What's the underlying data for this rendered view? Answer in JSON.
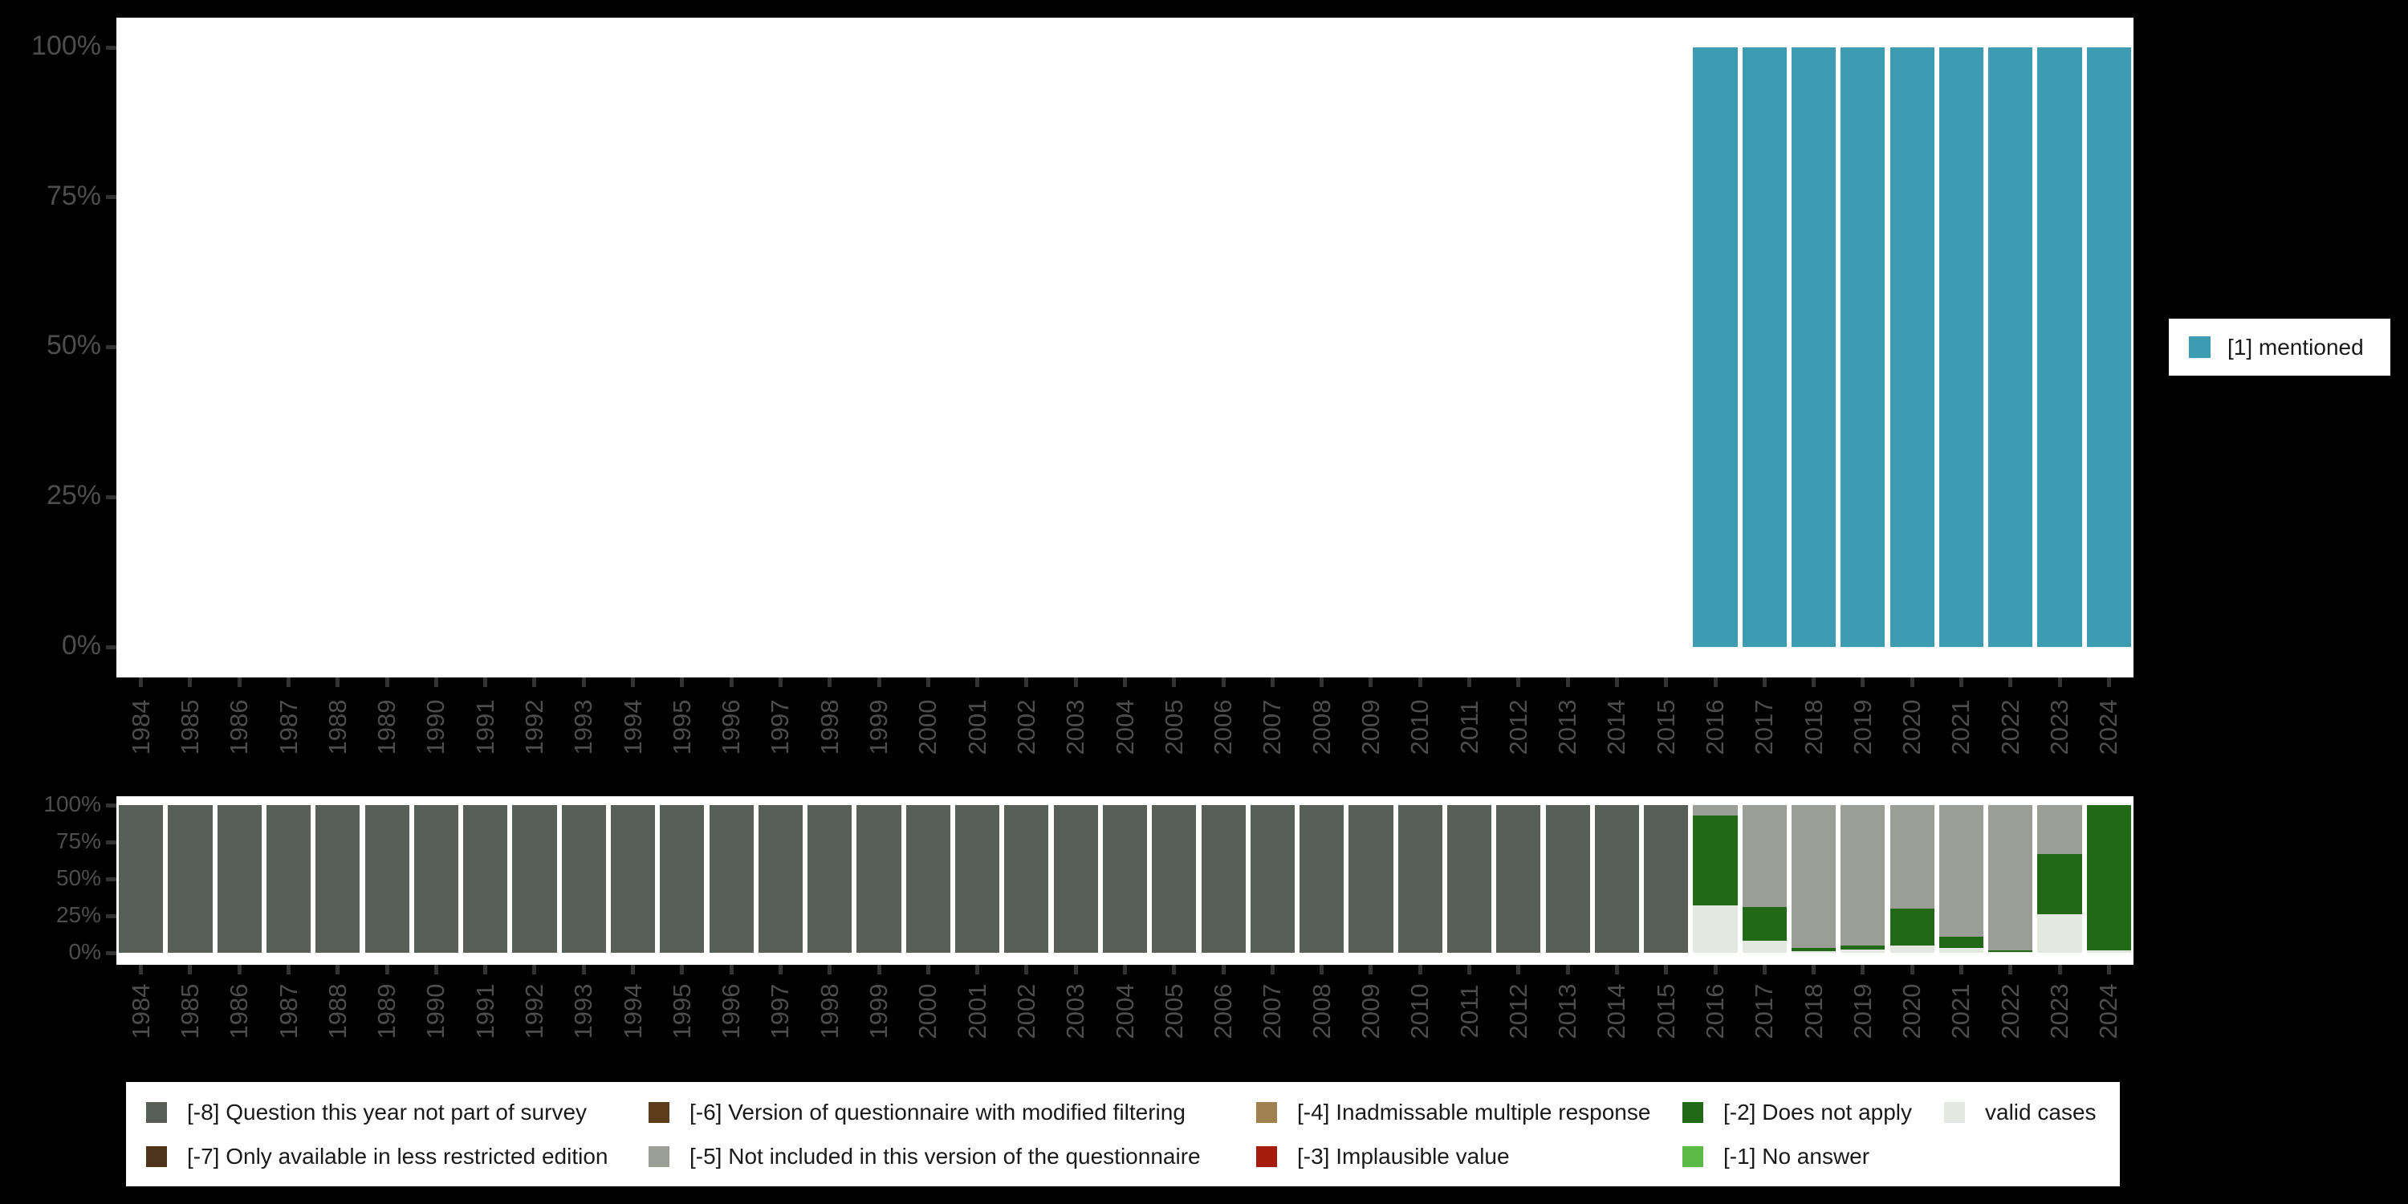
{
  "chart_data": [
    {
      "id": "mentioned-availability",
      "type": "bar",
      "stacked": true,
      "title": "",
      "xlabel": "",
      "ylabel": "",
      "ylim": [
        0,
        100
      ],
      "grid": false,
      "legend_position": "right",
      "y_tick_labels": [
        "100%",
        "75%",
        "50%",
        "25%",
        "0%"
      ],
      "y_tick_values": [
        100,
        75,
        50,
        25,
        0
      ],
      "categories": [
        "1984",
        "1985",
        "1986",
        "1987",
        "1988",
        "1989",
        "1990",
        "1991",
        "1992",
        "1993",
        "1994",
        "1995",
        "1996",
        "1997",
        "1998",
        "1999",
        "2000",
        "2001",
        "2002",
        "2003",
        "2004",
        "2005",
        "2006",
        "2007",
        "2008",
        "2009",
        "2010",
        "2011",
        "2012",
        "2013",
        "2014",
        "2015",
        "2016",
        "2017",
        "2018",
        "2019",
        "2020",
        "2021",
        "2022",
        "2023",
        "2024"
      ],
      "series": [
        {
          "name": "[1] mentioned",
          "color": "#3d9bb2",
          "values": [
            0,
            0,
            0,
            0,
            0,
            0,
            0,
            0,
            0,
            0,
            0,
            0,
            0,
            0,
            0,
            0,
            0,
            0,
            0,
            0,
            0,
            0,
            0,
            0,
            0,
            0,
            0,
            0,
            0,
            0,
            0,
            0,
            100,
            100,
            100,
            100,
            100,
            100,
            100,
            100,
            100
          ]
        }
      ]
    },
    {
      "id": "missing-values-breakdown",
      "type": "bar",
      "stacked": true,
      "title": "",
      "xlabel": "",
      "ylabel": "",
      "ylim": [
        0,
        100
      ],
      "grid": false,
      "legend_position": "bottom",
      "y_tick_labels": [
        "100%",
        "75%",
        "50%",
        "25%",
        "0%"
      ],
      "y_tick_values": [
        100,
        75,
        50,
        25,
        0
      ],
      "categories": [
        "1984",
        "1985",
        "1986",
        "1987",
        "1988",
        "1989",
        "1990",
        "1991",
        "1992",
        "1993",
        "1994",
        "1995",
        "1996",
        "1997",
        "1998",
        "1999",
        "2000",
        "2001",
        "2002",
        "2003",
        "2004",
        "2005",
        "2006",
        "2007",
        "2008",
        "2009",
        "2010",
        "2011",
        "2012",
        "2013",
        "2014",
        "2015",
        "2016",
        "2017",
        "2018",
        "2019",
        "2020",
        "2021",
        "2022",
        "2023",
        "2024"
      ],
      "series": [
        {
          "name": "[-8] Question this year not part of survey",
          "color": "#575f58",
          "values": [
            100,
            100,
            100,
            100,
            100,
            100,
            100,
            100,
            100,
            100,
            100,
            100,
            100,
            100,
            100,
            100,
            100,
            100,
            100,
            100,
            100,
            100,
            100,
            100,
            100,
            100,
            100,
            100,
            100,
            100,
            100,
            100,
            0,
            0,
            0,
            0,
            0,
            0,
            0,
            0,
            0
          ]
        },
        {
          "name": "[-5] Not included in this version of the questionnaire",
          "color": "#9a9e96",
          "values": [
            0,
            0,
            0,
            0,
            0,
            0,
            0,
            0,
            0,
            0,
            0,
            0,
            0,
            0,
            0,
            0,
            0,
            0,
            0,
            0,
            0,
            0,
            0,
            0,
            0,
            0,
            0,
            0,
            0,
            0,
            0,
            0,
            7,
            69,
            96.5,
            95,
            70,
            89,
            98.5,
            33,
            0
          ]
        },
        {
          "name": "[-2] Does not apply",
          "color": "#216916",
          "values": [
            0,
            0,
            0,
            0,
            0,
            0,
            0,
            0,
            0,
            0,
            0,
            0,
            0,
            0,
            0,
            0,
            0,
            0,
            0,
            0,
            0,
            0,
            0,
            0,
            0,
            0,
            0,
            0,
            0,
            0,
            0,
            0,
            61,
            23,
            2.5,
            3,
            25,
            8,
            1,
            41,
            98.5
          ]
        },
        {
          "name": "valid cases",
          "color": "#e3e8e0",
          "values": [
            0,
            0,
            0,
            0,
            0,
            0,
            0,
            0,
            0,
            0,
            0,
            0,
            0,
            0,
            0,
            0,
            0,
            0,
            0,
            0,
            0,
            0,
            0,
            0,
            0,
            0,
            0,
            0,
            0,
            0,
            0,
            0,
            32,
            8,
            1,
            2,
            5,
            3,
            0.5,
            26,
            1.5
          ]
        }
      ]
    }
  ],
  "top_legend": {
    "label": "[1] mentioned",
    "color": "#3d9bb2"
  },
  "bottom_legend": {
    "columns": [
      [
        {
          "label": "[-8] Question this year not part of survey",
          "color": "#575f58"
        },
        {
          "label": "[-7] Only available in less restricted edition",
          "color": "#4d341b"
        }
      ],
      [
        {
          "label": "[-6] Version of questionnaire with modified filtering",
          "color": "#5c3c1a"
        },
        {
          "label": "[-5] Not included in this version of the questionnaire",
          "color": "#9a9e96"
        }
      ],
      [
        {
          "label": "[-4] Inadmissable multiple response",
          "color": "#a0804e"
        },
        {
          "label": "[-3] Implausible value",
          "color": "#a51c0c"
        }
      ],
      [
        {
          "label": "[-2] Does not apply",
          "color": "#216916"
        },
        {
          "label": "[-1] No answer",
          "color": "#5cba46"
        }
      ],
      [
        {
          "label": "valid cases",
          "color": "#e3e8e0"
        }
      ]
    ]
  },
  "axis_style": {
    "text_color": "#4d4d4d",
    "tick_color": "#333333"
  }
}
